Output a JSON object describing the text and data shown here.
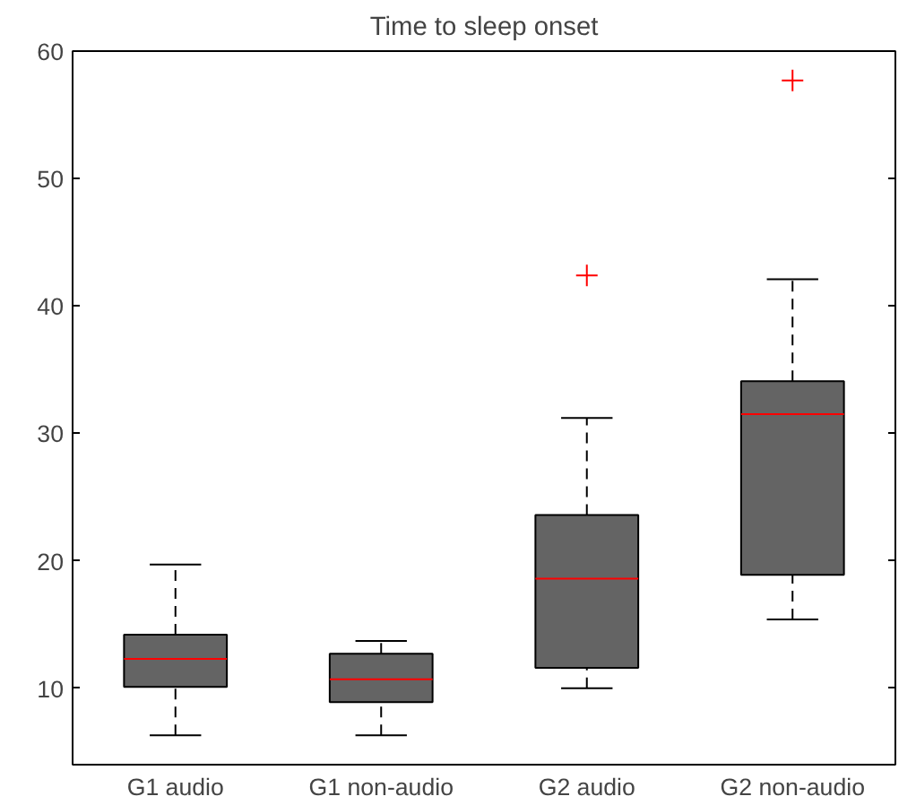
{
  "chart_data": {
    "type": "box",
    "title": "Time to sleep onset",
    "categories": [
      "G1 audio",
      "G1 non-audio",
      "G2 audio",
      "G2 non-audio"
    ],
    "color": "#646464",
    "ylim": [
      4,
      60
    ],
    "yticks": [
      10,
      20,
      30,
      40,
      50,
      60
    ],
    "grid": false,
    "marker": "cross",
    "boxes": [
      {
        "low": 6.3,
        "q1": 10.1,
        "median": 12.3,
        "q3": 14.2,
        "high": 19.7
      },
      {
        "low": 6.3,
        "q1": 8.9,
        "median": 10.7,
        "q3": 12.7,
        "high": 13.7
      },
      {
        "low": 10.0,
        "q1": 11.6,
        "median": 18.6,
        "q3": 23.6,
        "high": 31.2,
        "outliers": [
          42.4
        ]
      },
      {
        "low": 15.4,
        "q1": 18.9,
        "median": 31.5,
        "q3": 34.1,
        "high": 42.1,
        "outliers": [
          57.7
        ]
      }
    ]
  }
}
